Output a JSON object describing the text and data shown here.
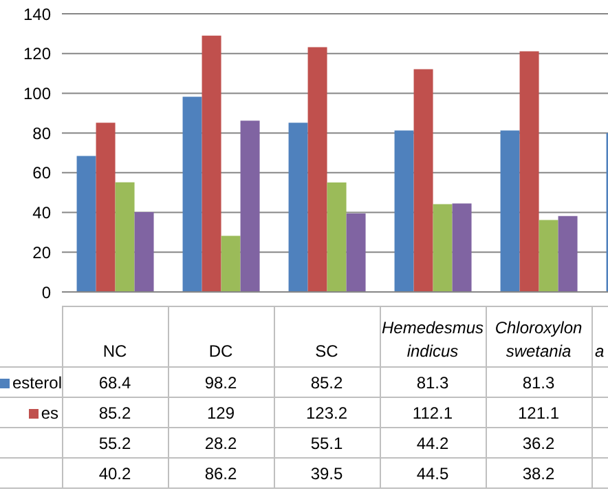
{
  "chart_data": {
    "type": "bar",
    "categories": [
      "NC",
      "DC",
      "SC",
      "Hemedesmus indicus",
      "Chloroxylon swetania",
      "a"
    ],
    "series": [
      {
        "name": "esterol",
        "color": "#4f81bd",
        "values": [
          68.4,
          98.2,
          85.2,
          81.3,
          81.3,
          80
        ],
        "value_labels": [
          "68.4",
          "98.2",
          "85.2",
          "81.3",
          "81.3",
          null
        ]
      },
      {
        "name": "es",
        "color": "#c0504d",
        "values": [
          85.2,
          129,
          123.2,
          112.1,
          121.1,
          null
        ],
        "value_labels": [
          "85.2",
          "129",
          "123.2",
          "112.1",
          "121.1",
          null
        ]
      },
      {
        "color": "#9bbb59",
        "values": [
          55.2,
          28.2,
          55.1,
          44.2,
          36.2,
          null
        ],
        "value_labels": [
          "55.2",
          "28.2",
          "55.1",
          "44.2",
          "36.2",
          null
        ]
      },
      {
        "color": "#8064a2",
        "values": [
          40.2,
          86.2,
          39.5,
          44.5,
          38.2,
          null
        ],
        "value_labels": [
          "40.2",
          "86.2",
          "39.5",
          "44.5",
          "38.2",
          null
        ]
      }
    ],
    "ylim": [
      0,
      140
    ],
    "yticks": [
      0,
      20,
      40,
      60,
      80,
      100,
      120,
      140
    ],
    "grid": "y",
    "legend": "bottom left"
  }
}
